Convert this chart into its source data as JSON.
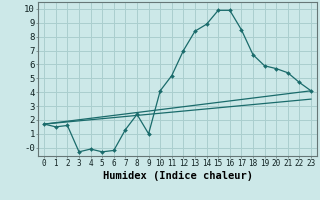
{
  "xlabel": "Humidex (Indice chaleur)",
  "xlim": [
    -0.5,
    23.5
  ],
  "ylim": [
    -0.6,
    10.5
  ],
  "background_color": "#cce8e8",
  "grid_color": "#aacece",
  "line_color": "#1a6b6b",
  "line1_x": [
    0,
    1,
    2,
    3,
    4,
    5,
    6,
    7,
    8,
    9,
    10,
    11,
    12,
    13,
    14,
    15,
    16,
    17,
    18,
    19,
    20,
    21,
    22,
    23
  ],
  "line1_y": [
    1.7,
    1.5,
    1.6,
    -0.3,
    -0.1,
    -0.3,
    -0.2,
    1.3,
    2.4,
    1.0,
    4.1,
    5.2,
    7.0,
    8.4,
    8.9,
    9.9,
    9.9,
    8.5,
    6.7,
    5.9,
    5.7,
    5.4,
    4.7,
    4.1
  ],
  "line2_x": [
    0,
    23
  ],
  "line2_y": [
    1.7,
    4.1
  ],
  "line3_x": [
    0,
    23
  ],
  "line3_y": [
    1.7,
    3.5
  ],
  "xtick_labels": [
    "0",
    "1",
    "2",
    "3",
    "4",
    "5",
    "6",
    "7",
    "8",
    "9",
    "10",
    "11",
    "12",
    "13",
    "14",
    "15",
    "16",
    "17",
    "18",
    "19",
    "20",
    "21",
    "22",
    "23"
  ],
  "ytick_labels": [
    "-0",
    "1",
    "2",
    "3",
    "4",
    "5",
    "6",
    "7",
    "8",
    "9",
    "10"
  ],
  "xtick_fontsize": 5.5,
  "ytick_fontsize": 6.5,
  "xlabel_fontsize": 7.5
}
